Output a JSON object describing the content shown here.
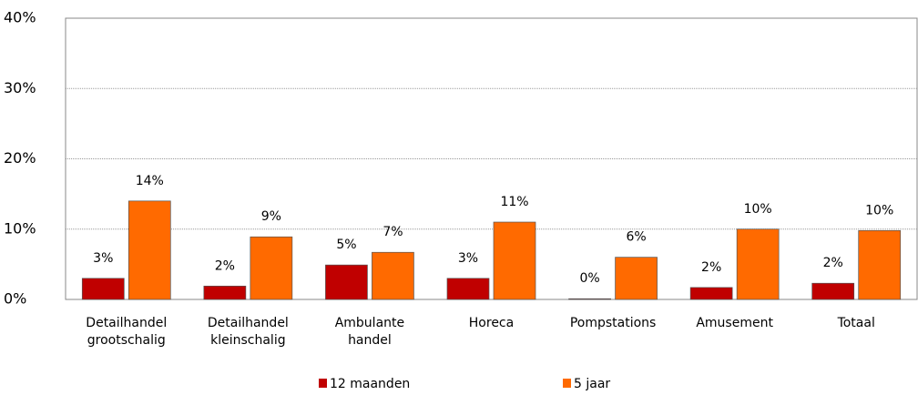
{
  "chart_data": {
    "type": "bar",
    "categories": [
      "Detailhandel grootschalig",
      "Detailhandel kleinschalig",
      "Ambulante handel",
      "Horeca",
      "Pompstations",
      "Amusement",
      "Totaal"
    ],
    "series": [
      {
        "name": "12 maanden",
        "color": "#c00000",
        "values": [
          3.0,
          1.9,
          4.9,
          3.0,
          0.1,
          1.7,
          2.3
        ],
        "value_labels": [
          "3%",
          "2%",
          "5%",
          "3%",
          "0%",
          "2%",
          "2%"
        ]
      },
      {
        "name": "5 jaar",
        "color": "#ff6a00",
        "values": [
          14.0,
          8.9,
          6.7,
          11.0,
          6.0,
          10.0,
          9.8
        ],
        "value_labels": [
          "14%",
          "9%",
          "7%",
          "11%",
          "6%",
          "10%",
          "10%"
        ]
      }
    ],
    "ylim": [
      0,
      40
    ],
    "yticks": [
      {
        "value": 0,
        "label": "0%"
      },
      {
        "value": 10,
        "label": "10%"
      },
      {
        "value": 20,
        "label": "20%"
      },
      {
        "value": 30,
        "label": "30%"
      },
      {
        "value": 40,
        "label": "40%"
      }
    ],
    "grid": true,
    "legend": "bottom"
  }
}
